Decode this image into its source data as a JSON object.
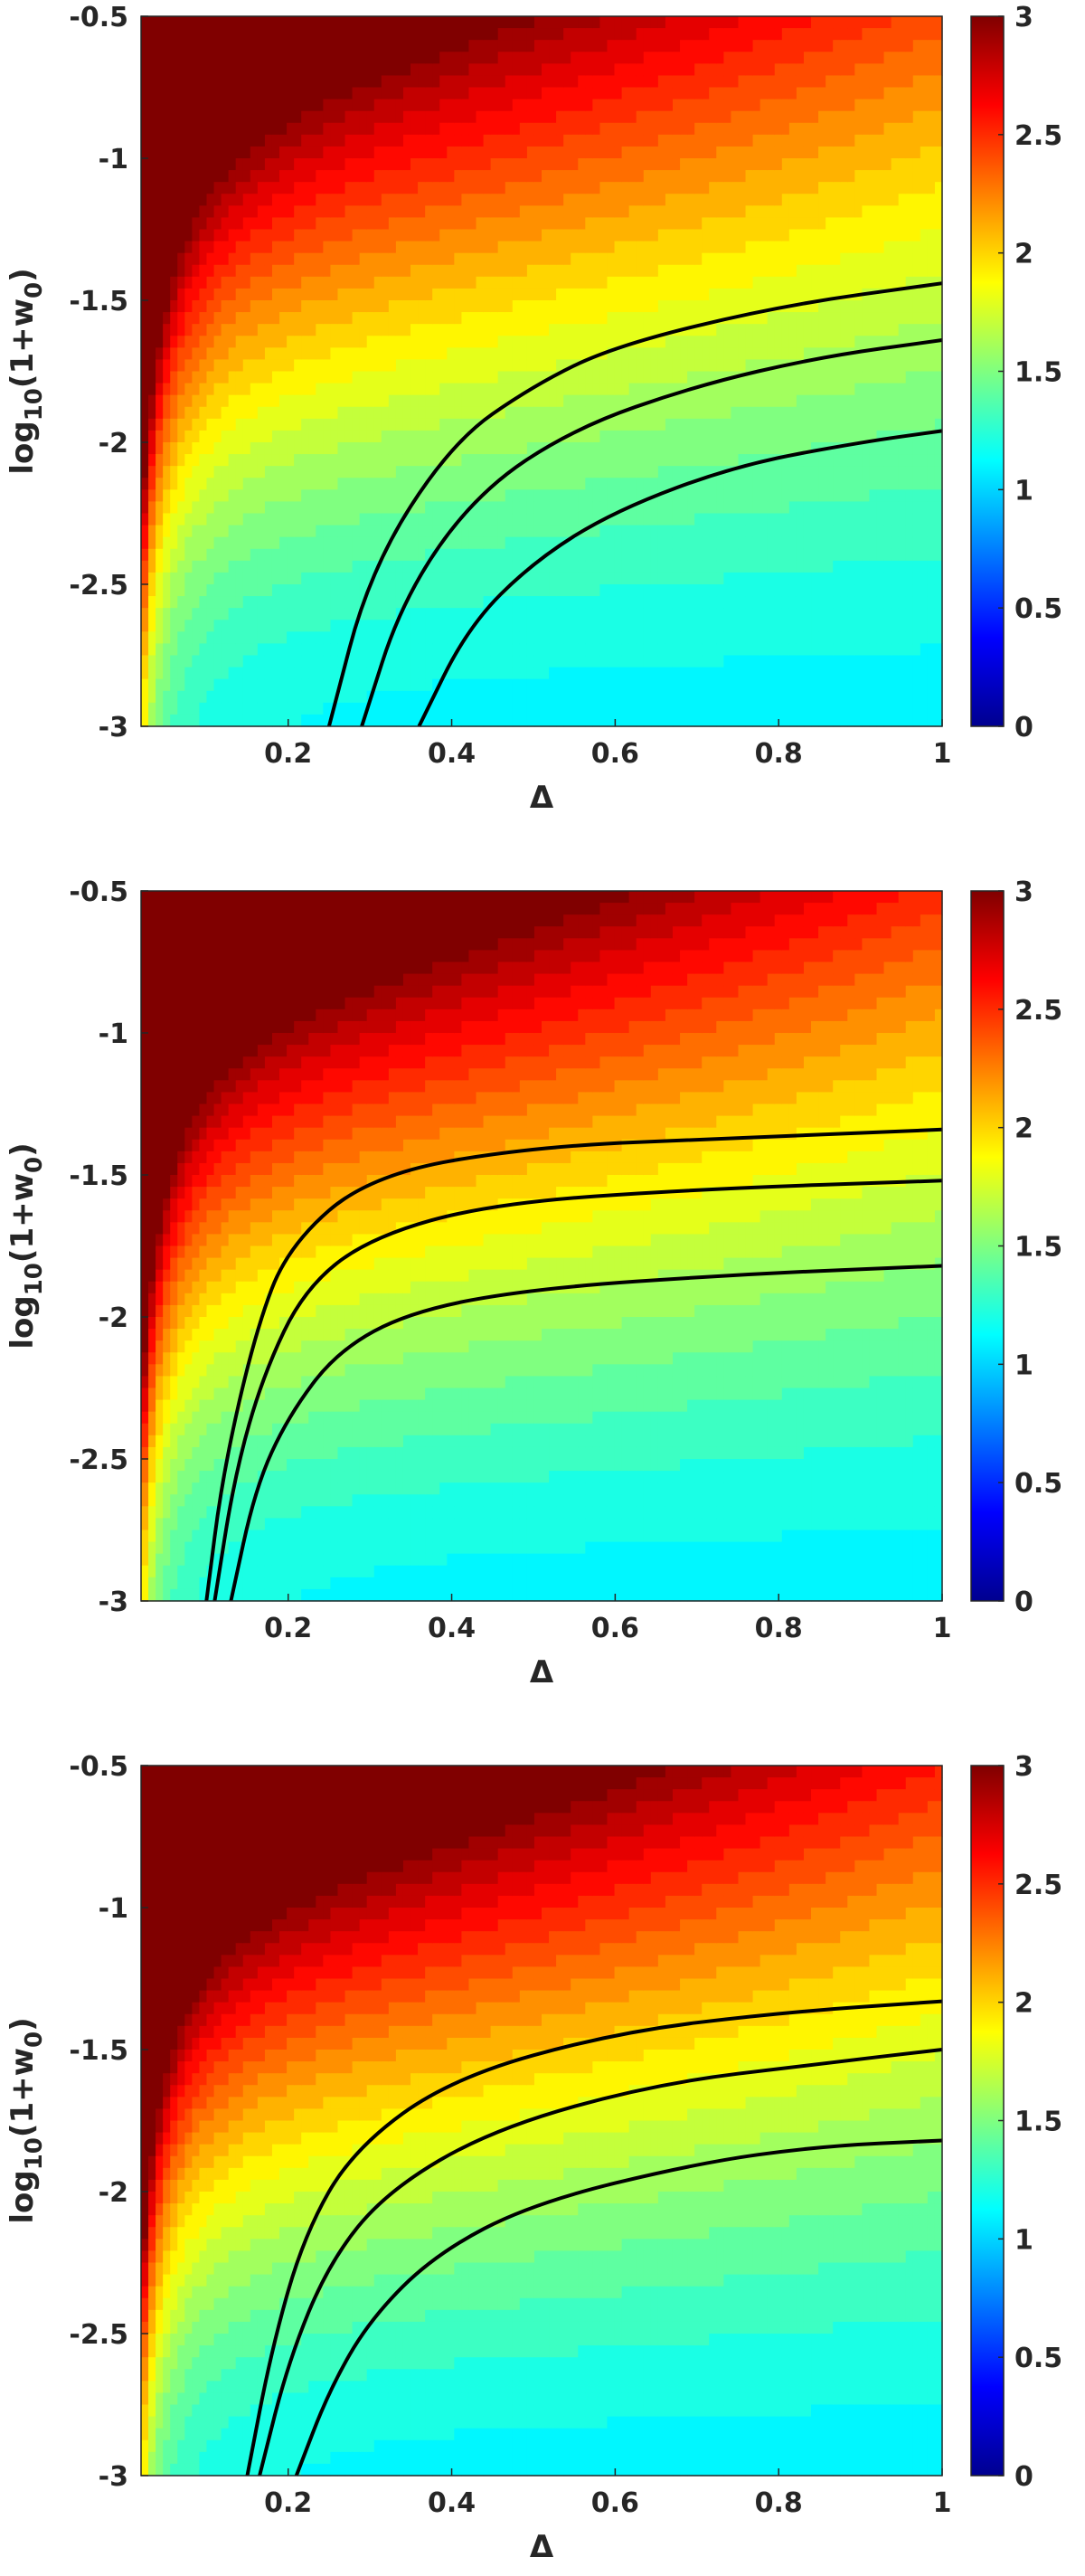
{
  "chart_data": [
    {
      "type": "heatmap",
      "xlabel": "Δ",
      "ylabel": "log10(1+w0)",
      "xlim": [
        0.02,
        1.0
      ],
      "ylim": [
        -3,
        -0.5
      ],
      "xticks": [
        0.2,
        0.4,
        0.6,
        0.8,
        1
      ],
      "xtick_labels": [
        "0.2",
        "0.4",
        "0.6",
        "0.8",
        "1"
      ],
      "yticks": [
        -0.5,
        -1,
        -1.5,
        -2,
        -2.5,
        -3
      ],
      "ytick_labels": [
        "-0.5",
        "-1",
        "-1.5",
        "-2",
        "-2.5",
        "-3"
      ],
      "colormap": "jet",
      "clim": [
        0,
        3
      ],
      "colorbar_ticks": [
        "0",
        "0.5",
        "1",
        "1.5",
        "2",
        "2.5",
        "3"
      ],
      "contours": [
        {
          "points": [
            [
              0.25,
              -3
            ],
            [
              0.3,
              -2.45
            ],
            [
              0.4,
              -2.0
            ],
            [
              0.5,
              -1.8
            ],
            [
              0.6,
              -1.66
            ],
            [
              0.8,
              -1.52
            ],
            [
              1.0,
              -1.44
            ]
          ]
        },
        {
          "points": [
            [
              0.29,
              -3
            ],
            [
              0.34,
              -2.55
            ],
            [
              0.43,
              -2.18
            ],
            [
              0.55,
              -1.95
            ],
            [
              0.7,
              -1.8
            ],
            [
              0.85,
              -1.7
            ],
            [
              1.0,
              -1.64
            ]
          ]
        },
        {
          "points": [
            [
              0.36,
              -3
            ],
            [
              0.42,
              -2.65
            ],
            [
              0.5,
              -2.42
            ],
            [
              0.6,
              -2.24
            ],
            [
              0.75,
              -2.08
            ],
            [
              0.9,
              -2.0
            ],
            [
              1.0,
              -1.96
            ]
          ]
        }
      ]
    },
    {
      "type": "heatmap",
      "xlabel": "Δ",
      "ylabel": "log10(1+w0)",
      "xlim": [
        0.02,
        1.0
      ],
      "ylim": [
        -3,
        -0.5
      ],
      "xticks": [
        0.2,
        0.4,
        0.6,
        0.8,
        1
      ],
      "xtick_labels": [
        "0.2",
        "0.4",
        "0.6",
        "0.8",
        "1"
      ],
      "yticks": [
        -0.5,
        -1,
        -1.5,
        -2,
        -2.5,
        -3
      ],
      "ytick_labels": [
        "-0.5",
        "-1",
        "-1.5",
        "-2",
        "-2.5",
        "-3"
      ],
      "colormap": "jet",
      "clim": [
        0,
        3
      ],
      "colorbar_ticks": [
        "0",
        "0.5",
        "1",
        "1.5",
        "2",
        "2.5",
        "3"
      ],
      "contours": [
        {
          "points": [
            [
              0.1,
              -3
            ],
            [
              0.12,
              -2.55
            ],
            [
              0.16,
              -2.05
            ],
            [
              0.2,
              -1.75
            ],
            [
              0.3,
              -1.5
            ],
            [
              0.5,
              -1.4
            ],
            [
              0.75,
              -1.37
            ],
            [
              1.0,
              -1.34
            ]
          ]
        },
        {
          "points": [
            [
              0.11,
              -3
            ],
            [
              0.135,
              -2.55
            ],
            [
              0.17,
              -2.2
            ],
            [
              0.22,
              -1.9
            ],
            [
              0.3,
              -1.72
            ],
            [
              0.45,
              -1.6
            ],
            [
              0.7,
              -1.55
            ],
            [
              1.0,
              -1.52
            ]
          ]
        },
        {
          "points": [
            [
              0.13,
              -3
            ],
            [
              0.16,
              -2.6
            ],
            [
              0.2,
              -2.35
            ],
            [
              0.26,
              -2.12
            ],
            [
              0.35,
              -1.98
            ],
            [
              0.5,
              -1.9
            ],
            [
              0.75,
              -1.85
            ],
            [
              1.0,
              -1.82
            ]
          ]
        }
      ]
    },
    {
      "type": "heatmap",
      "xlabel": "Δ",
      "ylabel": "log10(1+w0)",
      "xlim": [
        0.02,
        1.0
      ],
      "ylim": [
        -3,
        -0.5
      ],
      "xticks": [
        0.2,
        0.4,
        0.6,
        0.8,
        1
      ],
      "xtick_labels": [
        "0.2",
        "0.4",
        "0.6",
        "0.8",
        "1"
      ],
      "yticks": [
        -0.5,
        -1,
        -1.5,
        -2,
        -2.5,
        -3
      ],
      "ytick_labels": [
        "-0.5",
        "-1",
        "-1.5",
        "-2",
        "-2.5",
        "-3"
      ],
      "colormap": "jet",
      "clim": [
        0,
        3
      ],
      "colorbar_ticks": [
        "0",
        "0.5",
        "1",
        "1.5",
        "2",
        "2.5",
        "3"
      ],
      "contours": [
        {
          "points": [
            [
              0.15,
              -3
            ],
            [
              0.18,
              -2.55
            ],
            [
              0.22,
              -2.15
            ],
            [
              0.28,
              -1.85
            ],
            [
              0.4,
              -1.6
            ],
            [
              0.6,
              -1.44
            ],
            [
              0.8,
              -1.37
            ],
            [
              1.0,
              -1.33
            ]
          ]
        },
        {
          "points": [
            [
              0.165,
              -3
            ],
            [
              0.2,
              -2.6
            ],
            [
              0.25,
              -2.25
            ],
            [
              0.32,
              -2.0
            ],
            [
              0.45,
              -1.78
            ],
            [
              0.65,
              -1.62
            ],
            [
              0.85,
              -1.55
            ],
            [
              1.0,
              -1.5
            ]
          ]
        },
        {
          "points": [
            [
              0.21,
              -3
            ],
            [
              0.25,
              -2.7
            ],
            [
              0.3,
              -2.45
            ],
            [
              0.38,
              -2.22
            ],
            [
              0.5,
              -2.04
            ],
            [
              0.7,
              -1.9
            ],
            [
              0.85,
              -1.84
            ],
            [
              1.0,
              -1.82
            ]
          ]
        }
      ]
    }
  ]
}
